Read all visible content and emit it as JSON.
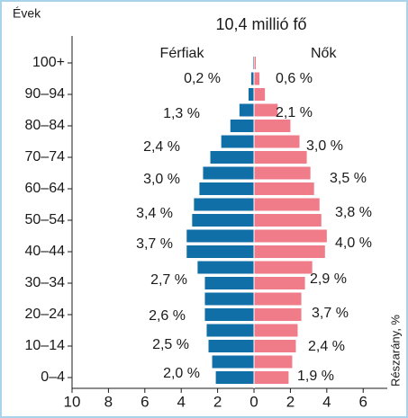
{
  "chart_data": {
    "type": "pyramid",
    "title": "10,4 millió fő",
    "y_label": "Évek",
    "x_label": "Részarány, %",
    "categories": [
      "0–4",
      null,
      "10–14",
      null,
      "20–24",
      null,
      "30–34",
      null,
      "40–44",
      null,
      "50–54",
      null,
      "60–64",
      null,
      "70–74",
      null,
      "80–84",
      null,
      "90–94",
      null,
      "100+"
    ],
    "series": [
      {
        "name": "Férfiak",
        "color": "#0f6fa6",
        "values": [
          2.1,
          2.3,
          2.5,
          2.6,
          2.7,
          2.7,
          2.7,
          3.1,
          3.7,
          3.7,
          3.4,
          3.3,
          3.0,
          2.8,
          2.4,
          1.8,
          1.3,
          0.8,
          0.3,
          0.15,
          0.05
        ]
      },
      {
        "name": "Nők",
        "color": "#f07b89",
        "values": [
          1.9,
          2.1,
          2.3,
          2.4,
          2.6,
          2.6,
          2.8,
          3.2,
          3.9,
          4.0,
          3.7,
          3.6,
          3.3,
          3.1,
          2.9,
          2.5,
          2.0,
          1.3,
          0.6,
          0.3,
          0.1
        ]
      }
    ],
    "annotations": {
      "male": [
        "0,2 %",
        "1,3 %",
        "2,4 %",
        "3,0 %",
        "3,4 %",
        "3,7 %",
        "2,7 %",
        "2,6 %",
        "2,5 %",
        "2,0 %"
      ],
      "female": [
        "0,6 %",
        "2,1 %",
        "3,0 %",
        "3,5 %",
        "3,8 %",
        "4,0 %",
        "2,9 %",
        "3,7 %",
        "2,4 %",
        "1,9 %"
      ]
    },
    "xlim": [
      -10,
      7.3
    ],
    "xticks": [
      {
        "value": -10,
        "label": "10"
      },
      {
        "value": -8,
        "label": "8"
      },
      {
        "value": -6,
        "label": "6"
      },
      {
        "value": -4,
        "label": "4"
      },
      {
        "value": -2,
        "label": "2"
      },
      0,
      2,
      4,
      6
    ]
  }
}
